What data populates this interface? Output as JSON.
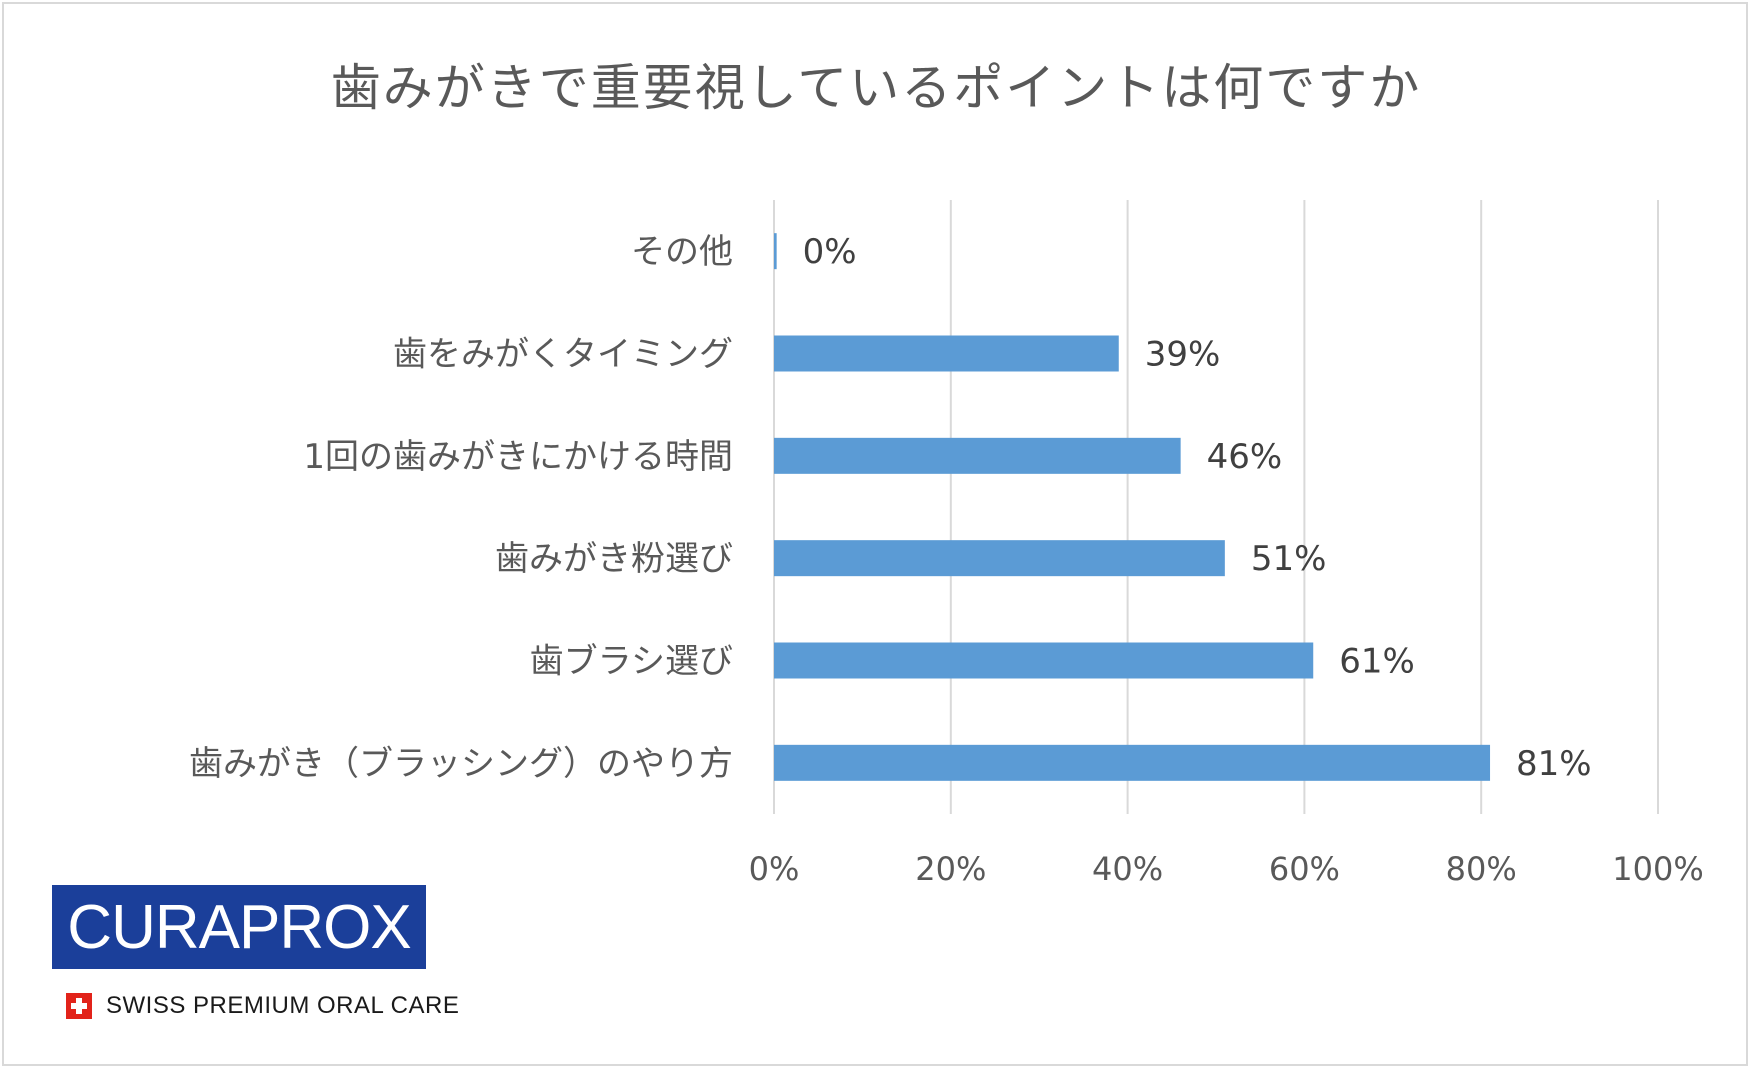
{
  "chart_data": {
    "type": "bar",
    "orientation": "horizontal",
    "title": "歯みがきで重要視しているポイントは何ですか",
    "categories": [
      "その他",
      "歯をみがくタイミング",
      "1回の歯みがきにかける時間",
      "歯みがき粉選び",
      "歯ブラシ選び",
      "歯みがき（ブラッシング）のやり方"
    ],
    "values": [
      0.3,
      39,
      46,
      51,
      61,
      81
    ],
    "data_labels": [
      "0%",
      "39%",
      "46%",
      "51%",
      "61%",
      "81%"
    ],
    "x_ticks": [
      "0%",
      "20%",
      "40%",
      "60%",
      "80%",
      "100%"
    ],
    "xlim": [
      0,
      100
    ],
    "grid": true,
    "legend": "none",
    "bar_color": "#5b9bd5"
  },
  "brand": {
    "logo_text": "CURAPROX",
    "tagline": "SWISS PREMIUM ORAL CARE",
    "logo_color": "#1b3f9a"
  }
}
